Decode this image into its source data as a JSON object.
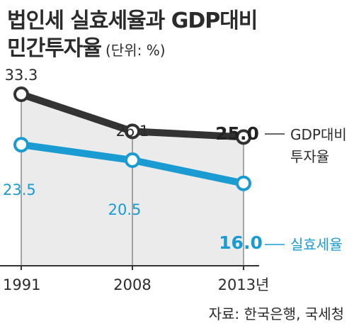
{
  "header": {
    "title_line1": "법인세 실효세율과 GDP대비",
    "title_line2": "민간투자율",
    "unit": "(단위: %)"
  },
  "source": "자료: 한국은행, 국세청",
  "chart_data": {
    "type": "line",
    "categories": [
      "1991",
      "2008",
      "2013년"
    ],
    "series": [
      {
        "name": "GDP대비 투자율",
        "name_lines": [
          "GDP대비",
          "투자율"
        ],
        "values": [
          33.3,
          26.1,
          25.0
        ],
        "value_labels": [
          "33.3",
          "26.1",
          "25.0"
        ],
        "color": "#333333"
      },
      {
        "name": "실효세율",
        "name_lines": [
          "실효세율"
        ],
        "values": [
          23.5,
          20.5,
          16.0
        ],
        "value_labels": [
          "23.5",
          "20.5",
          "16.0"
        ],
        "color": "#1a9bd1"
      }
    ],
    "ylim": [
      0,
      35
    ],
    "fill_color": "#ebebeb",
    "grid": false,
    "legend": "right"
  }
}
